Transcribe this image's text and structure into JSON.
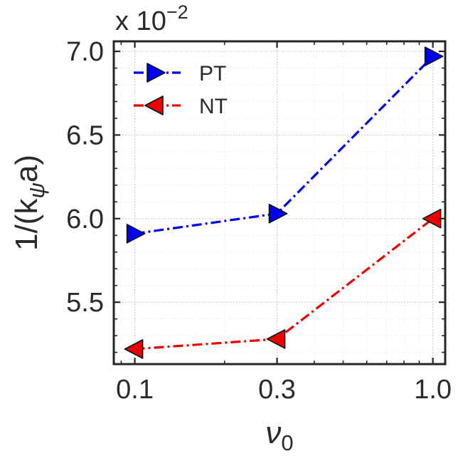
{
  "chart_data": {
    "type": "line",
    "title": "",
    "x_scale": "log",
    "xlim": [
      0.085,
      1.1
    ],
    "ylim": [
      5.13,
      7.06
    ],
    "x_ticks": [
      0.1,
      0.3,
      1.0
    ],
    "x_tick_labels": [
      "0.1",
      "0.3",
      "1.0"
    ],
    "y_ticks": [
      5.5,
      6.0,
      6.5,
      7.0
    ],
    "y_tick_labels": [
      "5.5",
      "6.0",
      "6.5",
      "7.0"
    ],
    "y_offset_label": {
      "base": "x 10",
      "exponent": "−2"
    },
    "xlabel": {
      "symbol": "ν",
      "subscript": "0"
    },
    "ylabel": {
      "prefix": "1/(k",
      "subscript": "ψ",
      "suffix": "a)"
    },
    "grid": true,
    "legend_position": "top-left",
    "series": [
      {
        "name": "PT",
        "color": "#0000ee",
        "marker": "triangle-right",
        "linestyle": "dash-dot",
        "x": [
          0.1,
          0.3,
          1.0
        ],
        "y": [
          5.91,
          6.03,
          6.97
        ]
      },
      {
        "name": "NT",
        "color": "#ee0000",
        "marker": "triangle-left",
        "linestyle": "dash-dot",
        "x": [
          0.1,
          0.3,
          1.0
        ],
        "y": [
          5.22,
          5.28,
          6.0
        ]
      }
    ]
  }
}
